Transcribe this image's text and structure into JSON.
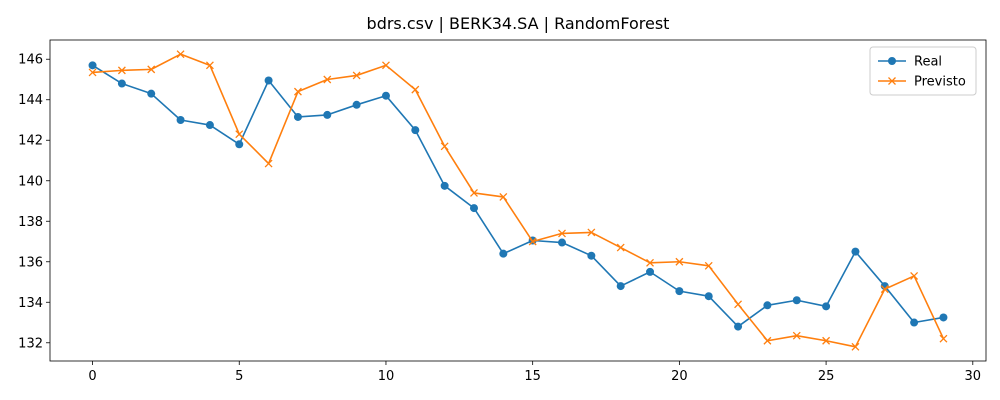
{
  "chart_data": {
    "type": "line",
    "title": "bdrs.csv | BERK34.SA | RandomForest",
    "xlabel": "",
    "ylabel": "",
    "xlim": [
      -1.45,
      30.45
    ],
    "ylim": [
      131.1,
      146.95
    ],
    "xticks": [
      0,
      5,
      10,
      15,
      20,
      25,
      30
    ],
    "yticks": [
      132,
      134,
      136,
      138,
      140,
      142,
      144,
      146
    ],
    "grid": false,
    "legend_position": "top-right",
    "x": [
      0,
      1,
      2,
      3,
      4,
      5,
      6,
      7,
      8,
      9,
      10,
      11,
      12,
      13,
      14,
      15,
      16,
      17,
      18,
      19,
      20,
      21,
      22,
      23,
      24,
      25,
      26,
      27,
      28,
      29
    ],
    "series": [
      {
        "name": "Real",
        "color": "#1f77b4",
        "marker": "circle",
        "values": [
          145.7,
          144.8,
          144.3,
          143.0,
          142.75,
          141.8,
          144.95,
          143.15,
          143.25,
          143.75,
          144.2,
          142.5,
          139.75,
          138.65,
          136.4,
          137.05,
          136.95,
          136.3,
          134.8,
          135.5,
          134.55,
          134.3,
          132.8,
          133.85,
          134.1,
          133.8,
          136.5,
          134.8,
          133.0,
          133.25
        ]
      },
      {
        "name": "Previsto",
        "color": "#ff7f0e",
        "marker": "x",
        "values": [
          145.35,
          145.45,
          145.5,
          146.25,
          145.7,
          142.3,
          140.85,
          144.4,
          145.0,
          145.2,
          145.7,
          144.5,
          141.7,
          139.4,
          139.2,
          137.0,
          137.4,
          137.45,
          136.7,
          135.95,
          136.0,
          135.8,
          133.9,
          132.1,
          132.35,
          132.1,
          131.8,
          134.65,
          135.3,
          132.2
        ]
      }
    ]
  }
}
